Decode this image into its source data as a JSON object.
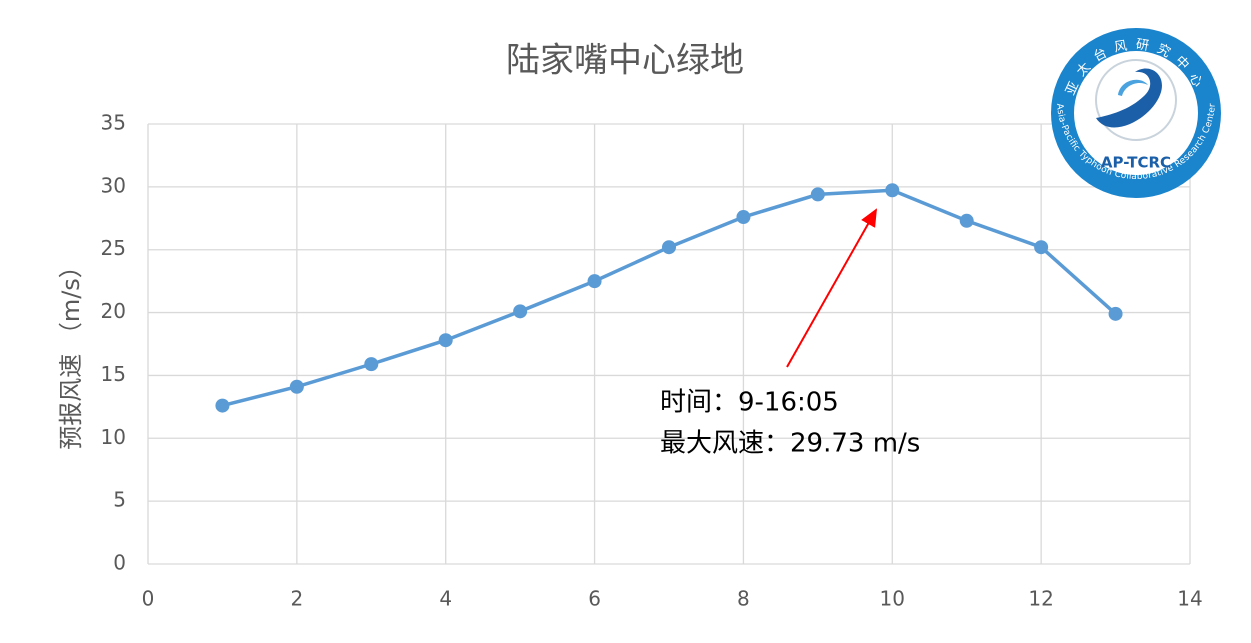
{
  "chart_data": {
    "type": "line",
    "title": "陆家嘴中心绿地",
    "y_label": "预报风速 （m/s）",
    "x": [
      1,
      2,
      3,
      4,
      5,
      6,
      7,
      8,
      9,
      10,
      11,
      12,
      13
    ],
    "series": [
      {
        "color": "#5b9bd5",
        "values": [
          12.6,
          14.1,
          15.9,
          17.8,
          20.1,
          22.5,
          25.2,
          27.6,
          29.4,
          29.73,
          27.3,
          25.2,
          19.9
        ]
      }
    ],
    "xlim": [
      0,
      14
    ],
    "xticks": [
      0,
      2,
      4,
      6,
      8,
      10,
      12,
      14
    ],
    "ylim": [
      0,
      35
    ],
    "yticks": [
      0,
      5,
      10,
      15,
      20,
      25,
      30,
      35
    ],
    "grid": true,
    "annotations": [
      "时间：9-16:05",
      "最大风速：29.73 m/s"
    ]
  },
  "logo": {
    "chinese": "亚太台风研究中心",
    "english": "Asia-Pacific Typhoon Collaborative Research Center",
    "short": "AP-TCRC"
  }
}
